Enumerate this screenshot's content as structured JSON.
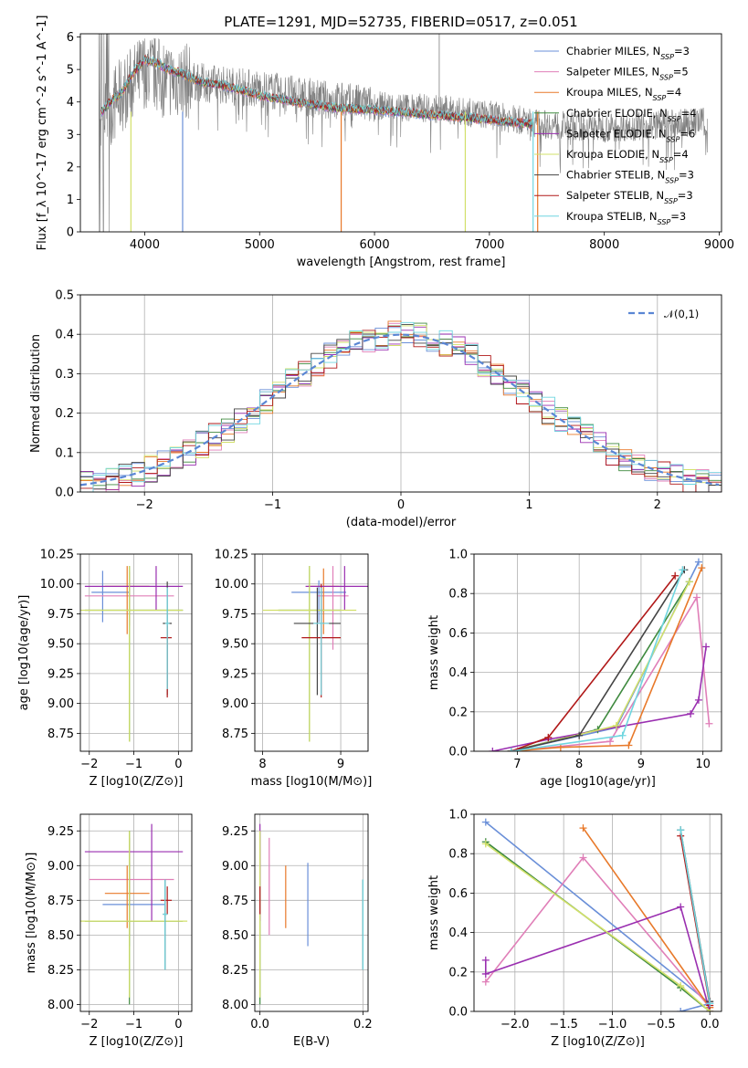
{
  "figure_title": "PLATE=1291, MJD=52735, FIBERID=0517, z=0.051",
  "models": [
    {
      "name": "Chabrier MILES",
      "nssp": "3",
      "color": "#6a8fd8"
    },
    {
      "name": "Salpeter MILES",
      "nssp": "5",
      "color": "#e07fb8"
    },
    {
      "name": "Kroupa MILES",
      "nssp": "4",
      "color": "#e8792a"
    },
    {
      "name": "Chabrier ELODIE",
      "nssp": "4",
      "color": "#3f8a3f"
    },
    {
      "name": "Salpeter ELODIE",
      "nssp": "6",
      "color": "#9a2fb0"
    },
    {
      "name": "Kroupa ELODIE",
      "nssp": "4",
      "color": "#d2e06a"
    },
    {
      "name": "Chabrier STELIB",
      "nssp": "3",
      "color": "#444444"
    },
    {
      "name": "Salpeter STELIB",
      "nssp": "3",
      "color": "#b01818"
    },
    {
      "name": "Kroupa STELIB",
      "nssp": "3",
      "color": "#6fd6e0"
    }
  ],
  "chart_data": [
    {
      "id": "spectrum",
      "type": "line",
      "xlabel": "wavelength [Angstrom, rest frame]",
      "ylabel": "Flux [f_λ 10^-17 erg cm^-2 s^-1 A^-1]",
      "xlim": [
        3440,
        9020
      ],
      "ylim": [
        0,
        6.1
      ],
      "xticks": [
        "4000",
        "5000",
        "6000",
        "7000",
        "8000",
        "9000"
      ],
      "yticks": [
        "0",
        "1",
        "2",
        "3",
        "4",
        "5",
        "6"
      ],
      "observed_color": "#7f7f7f",
      "observed_envelope": {
        "x": [
          3600,
          3800,
          4000,
          4200,
          4500,
          5000,
          5500,
          6000,
          6500,
          7000,
          7500,
          8000,
          8500,
          8900
        ],
        "y": [
          3.5,
          4.2,
          5.0,
          4.7,
          4.6,
          4.4,
          4.1,
          3.9,
          3.8,
          3.6,
          3.3,
          3.2,
          3.3,
          3.4
        ]
      },
      "model_curve": {
        "x": [
          3600,
          3700,
          3800,
          3900,
          4000,
          4100,
          4200,
          4300,
          4500,
          4700,
          5000,
          5300,
          5700,
          6000,
          6500,
          7000,
          7400
        ],
        "y": [
          3.6,
          4.0,
          4.3,
          4.9,
          5.3,
          5.2,
          5.0,
          4.9,
          4.6,
          4.5,
          4.2,
          4.0,
          3.8,
          3.75,
          3.6,
          3.45,
          3.3
        ]
      },
      "legend_location": "upper right"
    },
    {
      "id": "residual_histogram",
      "type": "line",
      "xlabel": "(data-model)/error",
      "ylabel": "Normed distribution",
      "xlim": [
        -2.5,
        2.5
      ],
      "ylim": [
        0,
        0.5
      ],
      "xticks": [
        "−2",
        "−1",
        "0",
        "1",
        "2"
      ],
      "yticks": [
        "0.0",
        "0.1",
        "0.2",
        "0.3",
        "0.4",
        "0.5"
      ],
      "reference": {
        "name": "𝒩(0,1)",
        "color": "#5a86d4",
        "style": "dashed"
      },
      "grid": true,
      "legend_location": "upper right"
    },
    {
      "id": "age_vs_Z",
      "type": "scatter",
      "xlabel": "Z [log10(Z/Z⊙)]",
      "ylabel": "age  [log10(age/yr)]",
      "xlim": [
        -2.2,
        0.3
      ],
      "ylim": [
        8.6,
        10.25
      ],
      "xticks": [
        "−2",
        "−1",
        "0"
      ],
      "yticks": [
        "8.75",
        "9.00",
        "9.25",
        "9.50",
        "9.75",
        "10.00",
        "10.25"
      ],
      "grid": true,
      "points": [
        {
          "model": 0,
          "x": -1.7,
          "xerr": [
            0.25,
            0.6
          ],
          "y": 9.93,
          "yerr": [
            0.25,
            0.18
          ]
        },
        {
          "model": 1,
          "x": -1.1,
          "xerr": [
            1.0,
            1.0
          ],
          "y": 9.9,
          "yerr": [
            0.25,
            0.2
          ]
        },
        {
          "model": 2,
          "x": -1.15,
          "xerr": [
            0.5,
            0.5
          ],
          "y": 9.98,
          "yerr": [
            0.4,
            0.17
          ]
        },
        {
          "model": 3,
          "x": -1.1,
          "xerr": [
            1.0,
            1.2
          ],
          "y": 9.78,
          "yerr": [
            1.1,
            0.37
          ]
        },
        {
          "model": 4,
          "x": -0.5,
          "xerr": [
            1.6,
            0.6
          ],
          "y": 9.98,
          "yerr": [
            0.2,
            0.17
          ]
        },
        {
          "model": 5,
          "x": -1.1,
          "xerr": [
            1.1,
            1.2
          ],
          "y": 9.78,
          "yerr": [
            1.1,
            0.37
          ]
        },
        {
          "model": 6,
          "x": -0.25,
          "xerr": [
            0.1,
            0.1
          ],
          "y": 9.67,
          "yerr": [
            0.6,
            0.35
          ]
        },
        {
          "model": 7,
          "x": -0.25,
          "xerr": [
            0.15,
            0.1
          ],
          "y": 9.55,
          "yerr": [
            0.5,
            0.1
          ]
        },
        {
          "model": 8,
          "x": -0.25,
          "xerr": [
            0.05,
            0.05
          ],
          "y": 9.67,
          "yerr": [
            0.55,
            0.3
          ]
        }
      ]
    },
    {
      "id": "age_vs_mass",
      "type": "scatter",
      "xlabel": "mass [log10(M/M⊙)]",
      "ylabel": "",
      "xlim": [
        7.9,
        9.35
      ],
      "ylim": [
        8.6,
        10.25
      ],
      "xticks": [
        "8",
        "9"
      ],
      "yticks": [
        "8.75",
        "9.00",
        "9.25",
        "9.50",
        "9.75",
        "10.00",
        "10.25"
      ],
      "grid": true,
      "points": [
        {
          "model": 0,
          "x": 8.72,
          "xerr": [
            0.35,
            0.35
          ],
          "y": 9.93,
          "yerr": [
            0.25,
            0.1
          ]
        },
        {
          "model": 1,
          "x": 8.9,
          "xerr": [
            0.2,
            0.2
          ],
          "y": 9.9,
          "yerr": [
            0.45,
            0.25
          ]
        },
        {
          "model": 2,
          "x": 8.78,
          "xerr": [
            0.2,
            0.2
          ],
          "y": 9.98,
          "yerr": [
            0.4,
            0.15
          ]
        },
        {
          "model": 3,
          "x": 8.6,
          "xerr": [
            0.4,
            0.4
          ],
          "y": 9.78,
          "yerr": [
            1.1,
            0.37
          ]
        },
        {
          "model": 4,
          "x": 9.05,
          "xerr": [
            0.5,
            0.3
          ],
          "y": 9.98,
          "yerr": [
            0.2,
            0.17
          ]
        },
        {
          "model": 5,
          "x": 8.6,
          "xerr": [
            0.6,
            0.6
          ],
          "y": 9.78,
          "yerr": [
            1.1,
            0.37
          ]
        },
        {
          "model": 6,
          "x": 8.7,
          "xerr": [
            0.3,
            0.3
          ],
          "y": 9.67,
          "yerr": [
            0.6,
            0.3
          ]
        },
        {
          "model": 7,
          "x": 8.75,
          "xerr": [
            0.25,
            0.25
          ],
          "y": 9.55,
          "yerr": [
            0.5,
            0.45
          ]
        },
        {
          "model": 8,
          "x": 8.75,
          "xerr": [
            0.1,
            0.1
          ],
          "y": 9.67,
          "yerr": [
            0.6,
            0.3
          ]
        }
      ]
    },
    {
      "id": "massweight_vs_age",
      "type": "line",
      "xlabel": "age  [log10(age/yr)]",
      "ylabel": "mass weight",
      "xlim": [
        6.3,
        10.3
      ],
      "ylim": [
        0,
        1.0
      ],
      "xticks": [
        "7",
        "8",
        "9",
        "10"
      ],
      "yticks": [
        "0.0",
        "0.2",
        "0.4",
        "0.6",
        "0.8",
        "1.0"
      ],
      "grid": true,
      "series": [
        {
          "model": 0,
          "x": [
            6.9,
            8.6,
            9.93
          ],
          "y": [
            0.0,
            0.12,
            0.96
          ]
        },
        {
          "model": 1,
          "x": [
            6.9,
            8.5,
            9.9,
            10.1
          ],
          "y": [
            0.0,
            0.05,
            0.78,
            0.14
          ]
        },
        {
          "model": 2,
          "x": [
            6.9,
            7.7,
            8.8,
            9.98
          ],
          "y": [
            0.0,
            0.02,
            0.03,
            0.93
          ]
        },
        {
          "model": 3,
          "x": [
            6.9,
            8.3,
            9.78
          ],
          "y": [
            0.0,
            0.11,
            0.86
          ]
        },
        {
          "model": 4,
          "x": [
            6.6,
            7.5,
            9.8,
            9.93,
            10.05
          ],
          "y": [
            0.0,
            0.06,
            0.19,
            0.26,
            0.53
          ]
        },
        {
          "model": 5,
          "x": [
            6.9,
            8.6,
            9.78
          ],
          "y": [
            0.0,
            0.13,
            0.86
          ]
        },
        {
          "model": 6,
          "x": [
            6.9,
            8.0,
            9.7
          ],
          "y": [
            0.0,
            0.08,
            0.92
          ]
        },
        {
          "model": 7,
          "x": [
            6.9,
            7.5,
            9.55
          ],
          "y": [
            0.0,
            0.07,
            0.89
          ]
        },
        {
          "model": 8,
          "x": [
            6.9,
            8.7,
            9.67
          ],
          "y": [
            0.0,
            0.08,
            0.92
          ]
        }
      ]
    },
    {
      "id": "mass_vs_Z",
      "type": "scatter",
      "xlabel": "Z [log10(Z/Z⊙)]",
      "ylabel": "mass [log10(M/M⊙)]",
      "xlim": [
        -2.2,
        0.3
      ],
      "ylim": [
        7.95,
        9.37
      ],
      "xticks": [
        "−2",
        "−1",
        "0"
      ],
      "yticks": [
        "8.00",
        "8.25",
        "8.50",
        "8.75",
        "9.00",
        "9.25"
      ],
      "grid": true,
      "points": [
        {
          "model": 0,
          "x": -1.1,
          "xerr": [
            0.6,
            0.8
          ],
          "y": 8.72,
          "yerr": [
            0.3,
            0.3
          ]
        },
        {
          "model": 1,
          "x": -1.1,
          "xerr": [
            0.9,
            1.0
          ],
          "y": 8.9,
          "yerr": [
            0.4,
            0.3
          ]
        },
        {
          "model": 2,
          "x": -1.15,
          "xerr": [
            0.5,
            0.5
          ],
          "y": 8.8,
          "yerr": [
            0.25,
            0.2
          ]
        },
        {
          "model": 3,
          "x": -1.1,
          "xerr": [
            1.0,
            1.2
          ],
          "y": 8.6,
          "yerr": [
            0.6,
            0.65
          ]
        },
        {
          "model": 4,
          "x": -0.6,
          "xerr": [
            1.5,
            0.7
          ],
          "y": 9.1,
          "yerr": [
            0.5,
            0.2
          ]
        },
        {
          "model": 5,
          "x": -1.1,
          "xerr": [
            1.1,
            1.3
          ],
          "y": 8.6,
          "yerr": [
            0.55,
            0.65
          ]
        },
        {
          "model": 6,
          "x": -0.3,
          "xerr": [
            0.05,
            0.05
          ],
          "y": 8.65,
          "yerr": [
            0.4,
            0.25
          ]
        },
        {
          "model": 7,
          "x": -0.25,
          "xerr": [
            0.15,
            0.1
          ],
          "y": 8.75,
          "yerr": [
            0.1,
            0.1
          ]
        },
        {
          "model": 8,
          "x": -0.3,
          "xerr": [
            0.05,
            0.05
          ],
          "y": 8.65,
          "yerr": [
            0.4,
            0.25
          ]
        }
      ]
    },
    {
      "id": "mass_vs_ebv",
      "type": "scatter",
      "xlabel": "E(B-V)",
      "ylabel": "",
      "xlim": [
        -0.01,
        0.21
      ],
      "ylim": [
        7.95,
        9.37
      ],
      "xticks": [
        "0.0",
        "0.2"
      ],
      "yticks": [
        "8.00",
        "8.25",
        "8.50",
        "8.75",
        "9.00",
        "9.25"
      ],
      "grid": true,
      "points": [
        {
          "model": 0,
          "x": 0.093,
          "y": 8.72,
          "yerr": [
            0.3,
            0.3
          ]
        },
        {
          "model": 1,
          "x": 0.018,
          "y": 8.9,
          "yerr": [
            0.4,
            0.3
          ]
        },
        {
          "model": 2,
          "x": 0.05,
          "y": 8.8,
          "yerr": [
            0.25,
            0.2
          ]
        },
        {
          "model": 3,
          "x": 0.0,
          "y": 8.6,
          "yerr": [
            0.6,
            0.65
          ]
        },
        {
          "model": 4,
          "x": 0.0,
          "y": 9.1,
          "yerr": [
            0.5,
            0.2
          ]
        },
        {
          "model": 5,
          "x": 0.0,
          "y": 8.6,
          "yerr": [
            0.55,
            0.65
          ]
        },
        {
          "model": 6,
          "x": 0.2,
          "y": 8.6,
          "yerr": [
            0.35,
            0.3
          ]
        },
        {
          "model": 7,
          "x": 0.0,
          "y": 8.75,
          "yerr": [
            0.1,
            0.1
          ]
        },
        {
          "model": 8,
          "x": 0.2,
          "y": 8.6,
          "yerr": [
            0.35,
            0.3
          ]
        }
      ]
    },
    {
      "id": "massweight_vs_Z",
      "type": "line",
      "xlabel": "Z [log10(Z/Z⊙)]",
      "ylabel": "mass weight",
      "xlim": [
        -2.42,
        0.12
      ],
      "ylim": [
        0,
        1.0
      ],
      "xticks": [
        "−2.0",
        "−1.5",
        "−1.0",
        "−0.5",
        "0.0"
      ],
      "yticks": [
        "0.0",
        "0.2",
        "0.4",
        "0.6",
        "0.8",
        "1.0"
      ],
      "grid": true,
      "series": [
        {
          "model": 0,
          "x": [
            -2.3,
            -0.0,
            -0.3
          ],
          "y": [
            0.96,
            0.04,
            0.0
          ]
        },
        {
          "model": 1,
          "x": [
            -2.3,
            -1.3,
            -0.0
          ],
          "y": [
            0.15,
            0.78,
            0.02
          ]
        },
        {
          "model": 2,
          "x": [
            -1.3,
            -0.0,
            0.0
          ],
          "y": [
            0.93,
            0.02,
            0.0
          ]
        },
        {
          "model": 3,
          "x": [
            -2.3,
            -0.3,
            0.0
          ],
          "y": [
            0.86,
            0.12,
            0.0
          ]
        },
        {
          "model": 4,
          "x": [
            -2.3,
            -2.3,
            -0.3,
            0.0
          ],
          "y": [
            0.26,
            0.19,
            0.53,
            0.0
          ]
        },
        {
          "model": 5,
          "x": [
            -2.3,
            -0.3,
            0.0
          ],
          "y": [
            0.85,
            0.13,
            0.0
          ]
        },
        {
          "model": 6,
          "x": [
            -0.3,
            0.0
          ],
          "y": [
            0.92,
            0.05
          ]
        },
        {
          "model": 7,
          "x": [
            -0.3,
            0.0
          ],
          "y": [
            0.89,
            0.03
          ]
        },
        {
          "model": 8,
          "x": [
            -0.3,
            0.0
          ],
          "y": [
            0.92,
            0.04
          ]
        }
      ]
    }
  ]
}
